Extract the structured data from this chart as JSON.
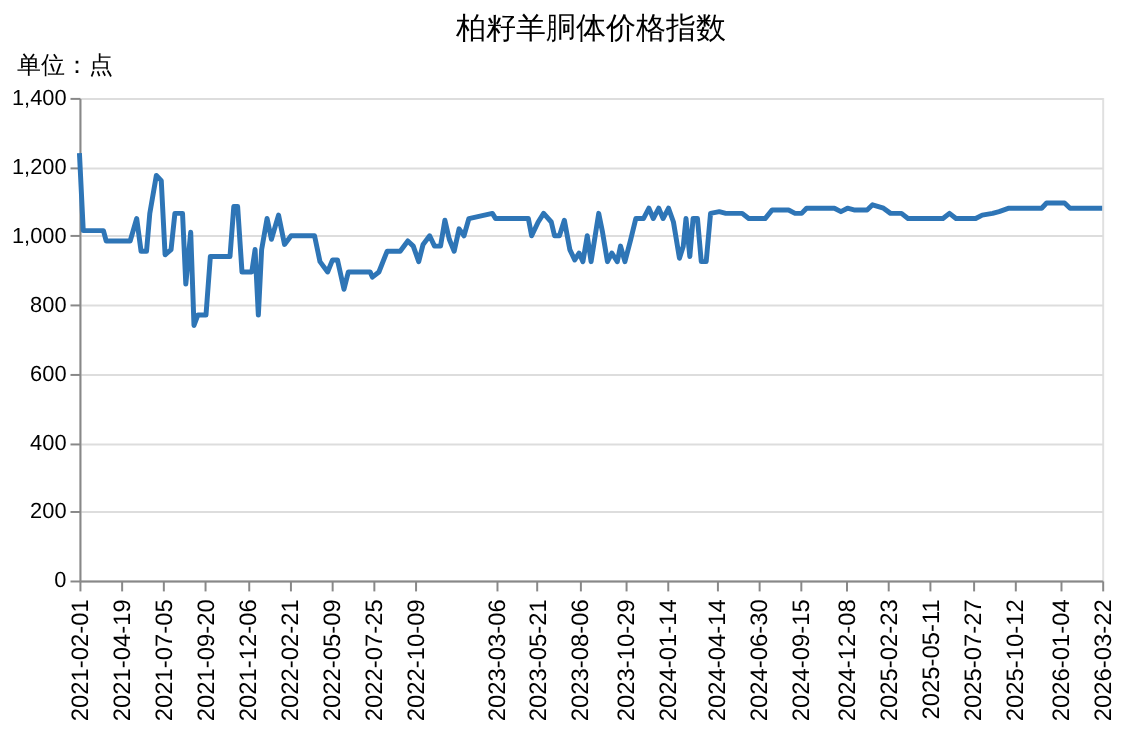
{
  "chart_data": {
    "type": "line",
    "title": "柏籽羊胴体价格指数",
    "ylabel": "单位：点",
    "x": [
      "2021-02-01",
      "2021-02-08",
      "2021-03-17",
      "2021-03-22",
      "2021-05-05",
      "2021-05-17",
      "2021-05-25",
      "2021-06-04",
      "2021-06-10",
      "2021-06-22",
      "2021-07-01",
      "2021-07-08",
      "2021-07-19",
      "2021-07-26",
      "2021-08-09",
      "2021-08-15",
      "2021-08-24",
      "2021-08-30",
      "2021-09-06",
      "2021-09-21",
      "2021-09-29",
      "2021-11-04",
      "2021-11-11",
      "2021-11-18",
      "2021-11-26",
      "2021-12-14",
      "2021-12-20",
      "2021-12-26",
      "2022-01-01",
      "2022-01-11",
      "2022-01-19",
      "2022-02-01",
      "2022-02-12",
      "2022-02-24",
      "2022-04-08",
      "2022-04-18",
      "2022-05-02",
      "2022-05-11",
      "2022-05-20",
      "2022-06-01",
      "2022-06-09",
      "2022-07-19",
      "2022-07-23",
      "2022-08-04",
      "2022-08-19",
      "2022-09-12",
      "2022-09-26",
      "2022-10-06",
      "2022-10-16",
      "2022-10-24",
      "2022-11-05",
      "2022-11-14",
      "2022-11-25",
      "2022-12-03",
      "2022-12-11",
      "2022-12-20",
      "2022-12-29",
      "2023-01-07",
      "2023-01-16",
      "2023-02-28",
      "2023-03-06",
      "2023-05-05",
      "2023-05-11",
      "2023-05-23",
      "2023-06-02",
      "2023-06-16",
      "2023-06-22",
      "2023-07-01",
      "2023-07-10",
      "2023-07-20",
      "2023-07-29",
      "2023-08-06",
      "2023-08-13",
      "2023-08-21",
      "2023-08-28",
      "2023-09-11",
      "2023-09-18",
      "2023-09-27",
      "2023-10-05",
      "2023-10-15",
      "2023-10-21",
      "2023-10-29",
      "2023-11-08",
      "2023-11-18",
      "2023-12-02",
      "2023-12-12",
      "2023-12-20",
      "2023-12-30",
      "2024-01-07",
      "2024-01-17",
      "2024-01-26",
      "2024-02-06",
      "2024-02-13",
      "2024-02-18",
      "2024-02-25",
      "2024-03-02",
      "2024-03-10",
      "2024-03-17",
      "2024-03-26",
      "2024-04-03",
      "2024-04-19",
      "2024-05-01",
      "2024-05-31",
      "2024-06-12",
      "2024-07-12",
      "2024-07-25",
      "2024-08-24",
      "2024-09-05",
      "2024-09-17",
      "2024-09-26",
      "2024-11-16",
      "2024-11-28",
      "2024-12-10",
      "2024-12-22",
      "2025-01-15",
      "2025-01-25",
      "2025-02-14",
      "2025-02-27",
      "2025-03-19",
      "2025-03-31",
      "2025-06-03",
      "2025-06-15",
      "2025-06-27",
      "2025-07-09",
      "2025-08-02",
      "2025-08-14",
      "2025-09-02",
      "2025-09-14",
      "2025-10-02",
      "2025-12-01",
      "2025-12-10",
      "2026-01-12",
      "2026-01-22",
      "2026-03-22"
    ],
    "series": [
      {
        "color": "#2e75b6",
        "values": [
          1240,
          1015,
          1015,
          985,
          985,
          1050,
          955,
          955,
          1065,
          1175,
          1160,
          945,
          960,
          1065,
          1065,
          860,
          1010,
          740,
          770,
          770,
          940,
          940,
          1085,
          1085,
          895,
          895,
          960,
          770,
          960,
          1050,
          990,
          1060,
          975,
          1000,
          1000,
          925,
          895,
          930,
          930,
          845,
          895,
          895,
          880,
          895,
          955,
          955,
          985,
          970,
          925,
          975,
          1000,
          970,
          970,
          1045,
          990,
          955,
          1020,
          1000,
          1050,
          1065,
          1050,
          1050,
          1000,
          1040,
          1065,
          1040,
          1000,
          1000,
          1045,
          960,
          930,
          950,
          925,
          1000,
          925,
          1065,
          1010,
          925,
          950,
          925,
          970,
          925,
          985,
          1050,
          1050,
          1080,
          1050,
          1080,
          1050,
          1080,
          1040,
          935,
          970,
          1050,
          940,
          1050,
          1050,
          925,
          925,
          1065,
          1070,
          1065,
          1065,
          1050,
          1050,
          1075,
          1075,
          1065,
          1065,
          1080,
          1080,
          1070,
          1080,
          1075,
          1075,
          1090,
          1080,
          1065,
          1065,
          1050,
          1050,
          1065,
          1050,
          1050,
          1050,
          1060,
          1065,
          1070,
          1080,
          1080,
          1095,
          1095,
          1080,
          1080
        ]
      }
    ],
    "xlim": [
      "2021-02-01",
      "2026-03-22"
    ],
    "xticks": [
      "2021-02-01",
      "2021-04-19",
      "2021-07-05",
      "2021-09-20",
      "2021-12-06",
      "2022-02-21",
      "2022-05-09",
      "2022-07-25",
      "2022-10-09",
      "2023-03-06",
      "2023-05-21",
      "2023-08-06",
      "2023-10-29",
      "2024-01-14",
      "2024-04-14",
      "2024-06-30",
      "2024-09-15",
      "2024-12-08",
      "2025-02-23",
      "2025-05-11",
      "2025-07-27",
      "2025-10-12",
      "2026-01-04",
      "2026-03-22"
    ],
    "ylim": [
      0,
      1400
    ],
    "yticks": [
      0,
      {
        "value": 200,
        "label": "200"
      },
      {
        "value": 400,
        "label": "400"
      },
      {
        "value": 600,
        "label": "600"
      },
      {
        "value": 800,
        "label": "800"
      },
      {
        "value": 1000,
        "label": "1,000"
      },
      {
        "value": 1200,
        "label": "1,200"
      },
      {
        "value": 1400,
        "label": "1,400"
      }
    ],
    "grid": "y",
    "marker": "none",
    "line_style": "solid"
  }
}
